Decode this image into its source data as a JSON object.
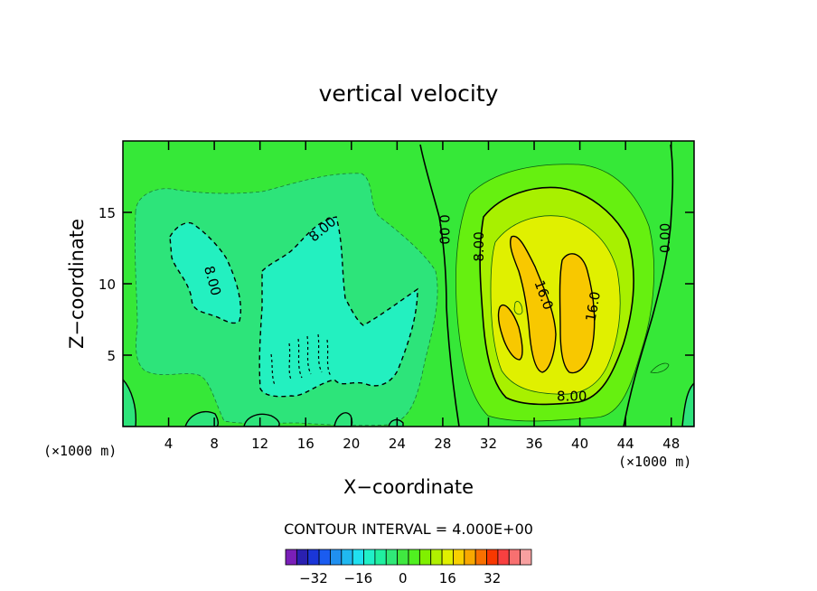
{
  "chart_data": {
    "type": "contour",
    "title": "vertical velocity",
    "xlabel": "X−coordinate",
    "ylabel": "Z−coordinate",
    "x_unit": "(×1000 m)",
    "z_unit": "(×1000 m)",
    "xlim": [
      0,
      50
    ],
    "ylim": [
      0,
      20
    ],
    "x_ticks": [
      4,
      8,
      12,
      16,
      20,
      24,
      28,
      32,
      36,
      40,
      44,
      48
    ],
    "x_tick_labels": [
      "4",
      "8",
      "12",
      "16",
      "20",
      "24",
      "28",
      "32",
      "36",
      "40",
      "44",
      "48"
    ],
    "y_ticks": [
      5,
      10,
      15
    ],
    "y_tick_labels": [
      "5",
      "10",
      "15"
    ],
    "contour_interval_text": "CONTOUR INTERVAL = 4.000E+00",
    "contour_interval": 4,
    "colorbar": {
      "levels": [
        -40,
        -36,
        -32,
        -28,
        -24,
        -20,
        -16,
        -12,
        -8,
        -4,
        0,
        4,
        8,
        12,
        16,
        20,
        24,
        28,
        32,
        36,
        40
      ],
      "colors": [
        "#7a1fb8",
        "#2a20b0",
        "#1a36d8",
        "#1a5cf0",
        "#2090f0",
        "#20b8f0",
        "#20e0f0",
        "#20f0c8",
        "#20f0a0",
        "#30e878",
        "#40e840",
        "#50f020",
        "#80f000",
        "#b0f000",
        "#e0f000",
        "#f8d000",
        "#f8a800",
        "#f87000",
        "#f83800",
        "#f84040",
        "#f87070",
        "#f8a0a0"
      ],
      "tick_values": [
        -32,
        -16,
        0,
        16,
        32
      ],
      "tick_labels": [
        "−32",
        "−16",
        "0",
        "16",
        "32"
      ]
    },
    "contour_labels": [
      {
        "text": "8.00",
        "x": 17.5,
        "z": 13.8,
        "angle": -40
      },
      {
        "text": "8.00",
        "x": 7.8,
        "z": 10.2,
        "angle": 75
      },
      {
        "text": "0.00",
        "x": 28.1,
        "z": 13.8,
        "angle": 90
      },
      {
        "text": "8.00",
        "x": 31.2,
        "z": 12.6,
        "angle": -90
      },
      {
        "text": "16.0",
        "x": 36.8,
        "z": 9.2,
        "angle": 70
      },
      {
        "text": "16.0",
        "x": 41.2,
        "z": 8.4,
        "angle": -80
      },
      {
        "text": "8.00",
        "x": 39.3,
        "z": 2.1,
        "angle": 0
      },
      {
        "text": "0.00",
        "x": 47.5,
        "z": 13.2,
        "angle": -90
      }
    ],
    "fields": {
      "background": 0,
      "updraft_max": 24,
      "downdraft_min": -12
    }
  }
}
